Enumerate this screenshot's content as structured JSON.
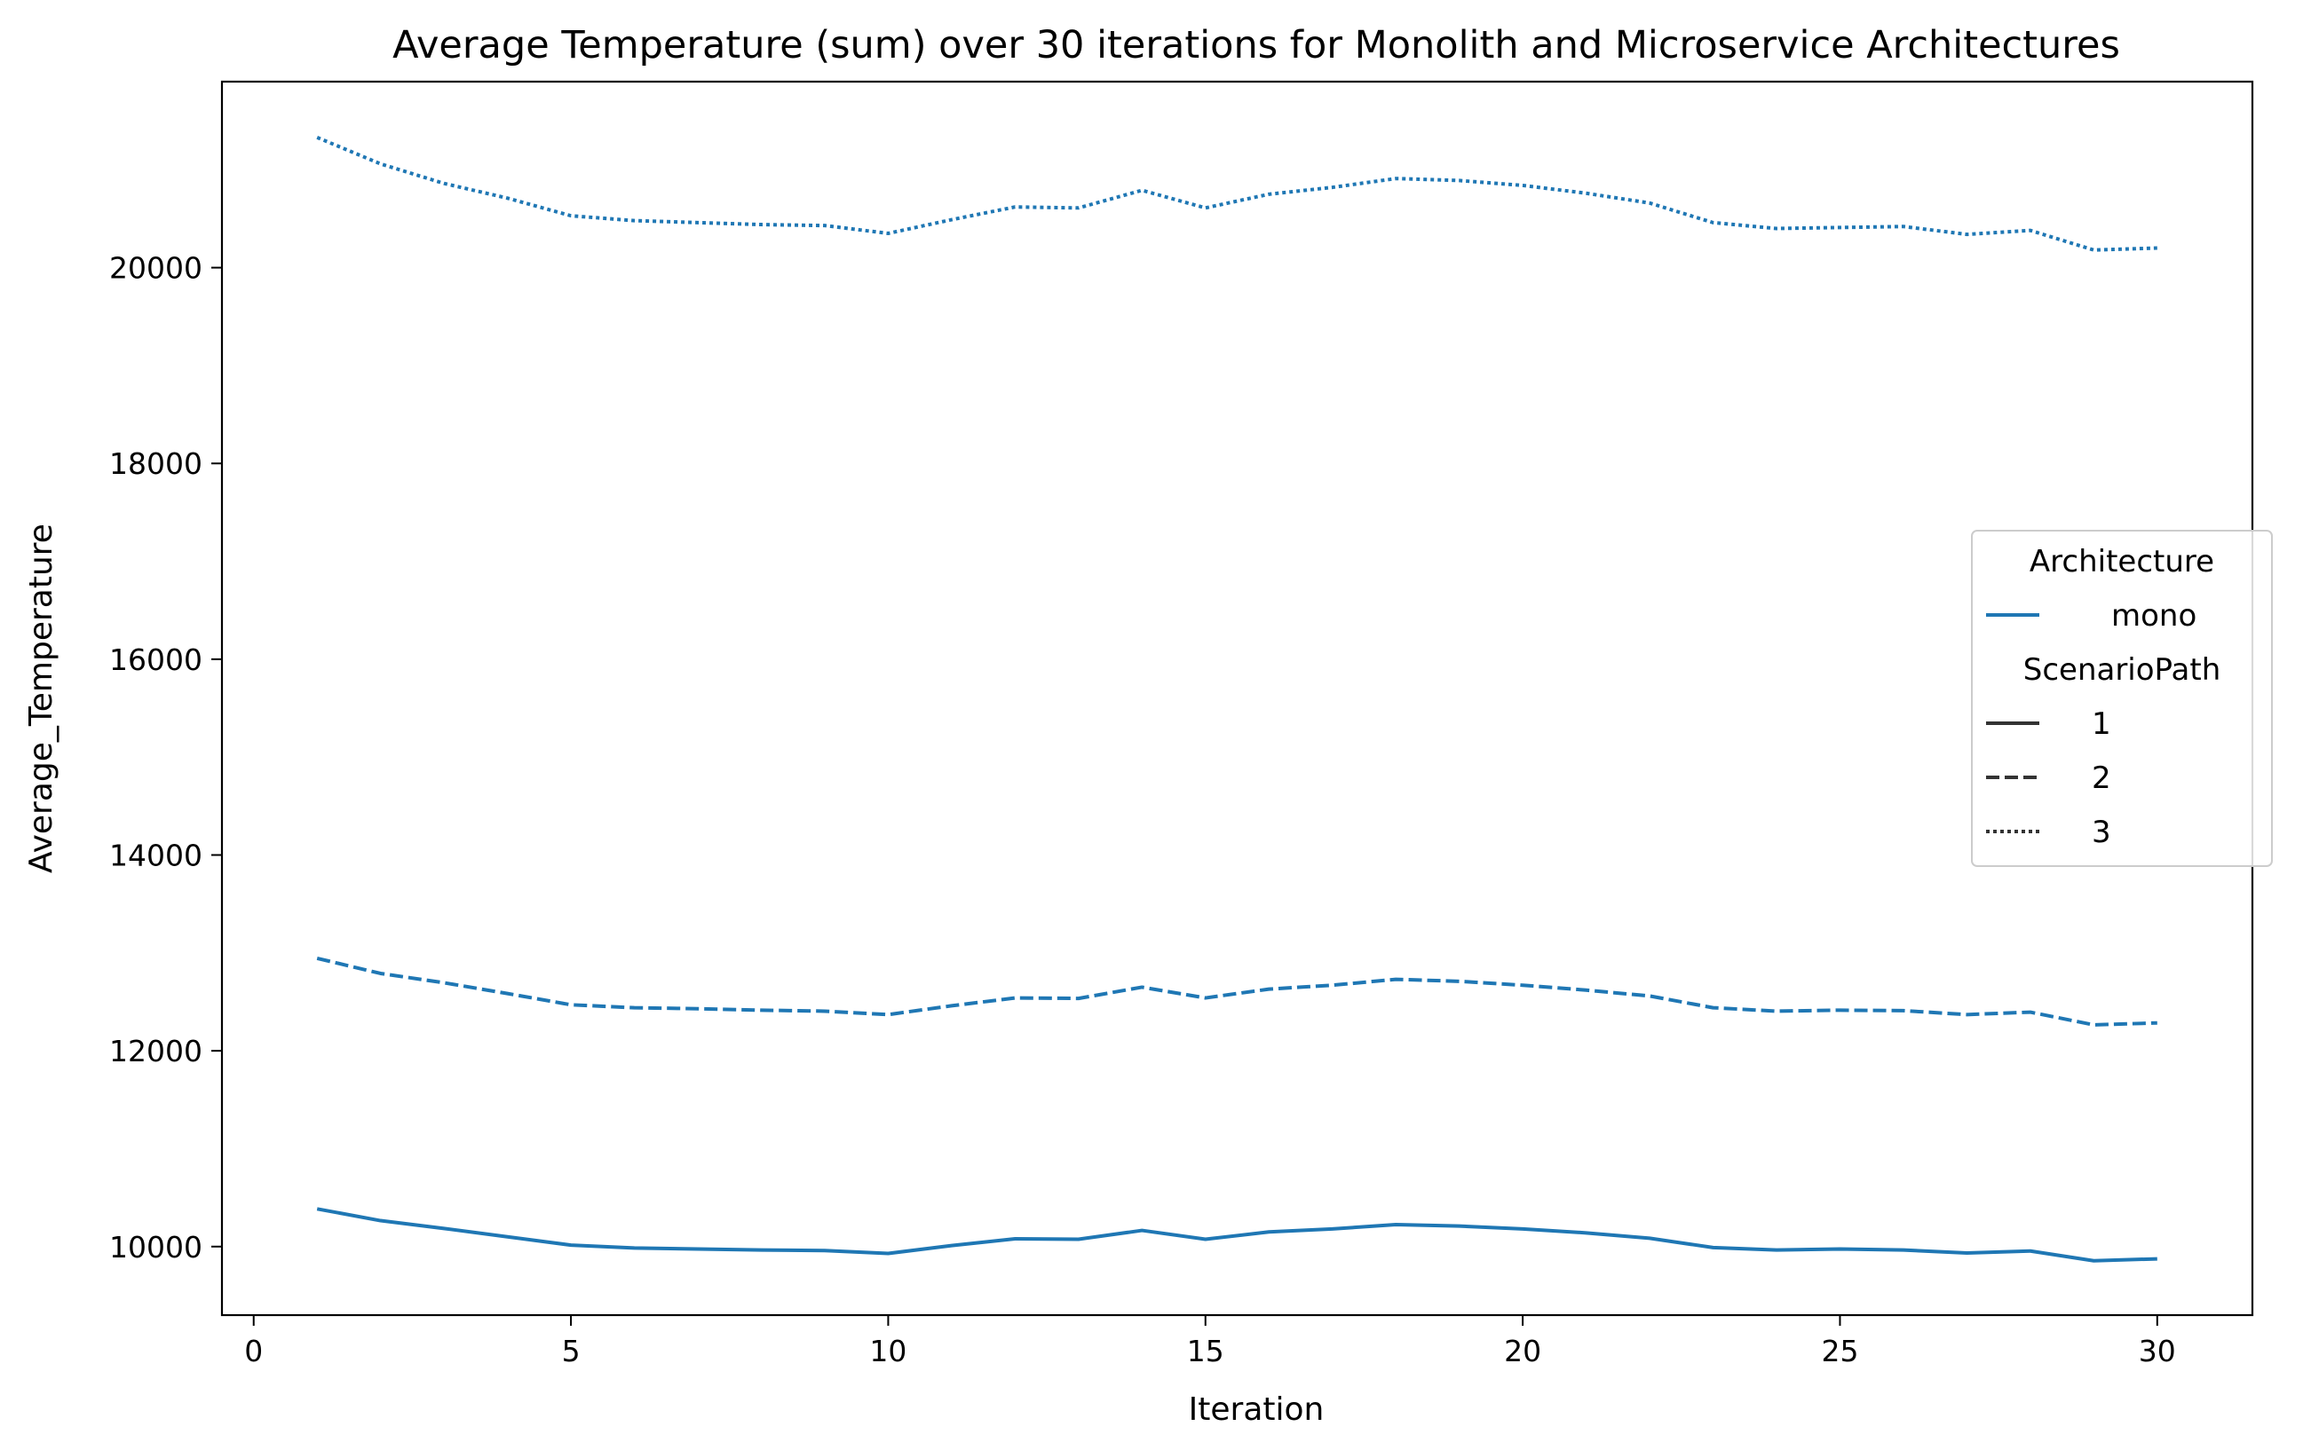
{
  "chart_data": {
    "type": "line",
    "title": "Average Temperature (sum) over 30 iterations for Monolith and Microservice Architectures",
    "xlabel": "Iteration",
    "ylabel": "Average_Temperature",
    "xlim": [
      -0.5,
      31.5
    ],
    "ylim": [
      9300,
      21900
    ],
    "x_ticks": [
      0,
      5,
      10,
      15,
      20,
      25,
      30
    ],
    "y_ticks": [
      10000,
      12000,
      14000,
      16000,
      18000,
      20000
    ],
    "grid": false,
    "legend": {
      "placement": "right",
      "hue_title": "Architecture",
      "hue_entries": [
        {
          "label": "mono",
          "color": "#1f77b4"
        }
      ],
      "style_title": "ScenarioPath",
      "style_entries": [
        {
          "label": "1",
          "style": "solid"
        },
        {
          "label": "2",
          "style": "dashed"
        },
        {
          "label": "3",
          "style": "dotted"
        }
      ]
    },
    "x": [
      1,
      2,
      3,
      4,
      5,
      6,
      7,
      8,
      9,
      10,
      11,
      12,
      13,
      14,
      15,
      16,
      17,
      18,
      19,
      20,
      21,
      22,
      23,
      24,
      25,
      26,
      27,
      28,
      29,
      30
    ],
    "series": [
      {
        "architecture": "mono",
        "scenario": "1",
        "color": "#1f77b4",
        "style": "solid",
        "values": [
          10385,
          10265,
          10185,
          10100,
          10015,
          9985,
          9975,
          9965,
          9960,
          9930,
          10010,
          10080,
          10075,
          10165,
          10075,
          10150,
          10180,
          10225,
          10210,
          10180,
          10140,
          10085,
          9990,
          9965,
          9975,
          9965,
          9935,
          9955,
          9855,
          9875
        ]
      },
      {
        "architecture": "mono",
        "scenario": "2",
        "color": "#1f77b4",
        "style": "dashed",
        "values": [
          12945,
          12790,
          12695,
          12585,
          12470,
          12440,
          12430,
          12415,
          12405,
          12370,
          12460,
          12540,
          12535,
          12650,
          12540,
          12630,
          12670,
          12730,
          12710,
          12670,
          12620,
          12560,
          12440,
          12405,
          12415,
          12410,
          12370,
          12395,
          12265,
          12285
        ]
      },
      {
        "architecture": "mono",
        "scenario": "3",
        "color": "#1f77b4",
        "style": "dotted",
        "values": [
          21330,
          21060,
          20860,
          20710,
          20530,
          20480,
          20460,
          20440,
          20430,
          20350,
          20490,
          20620,
          20610,
          20790,
          20610,
          20750,
          20820,
          20910,
          20890,
          20840,
          20760,
          20660,
          20460,
          20400,
          20410,
          20420,
          20340,
          20380,
          20180,
          20200
        ]
      }
    ]
  }
}
